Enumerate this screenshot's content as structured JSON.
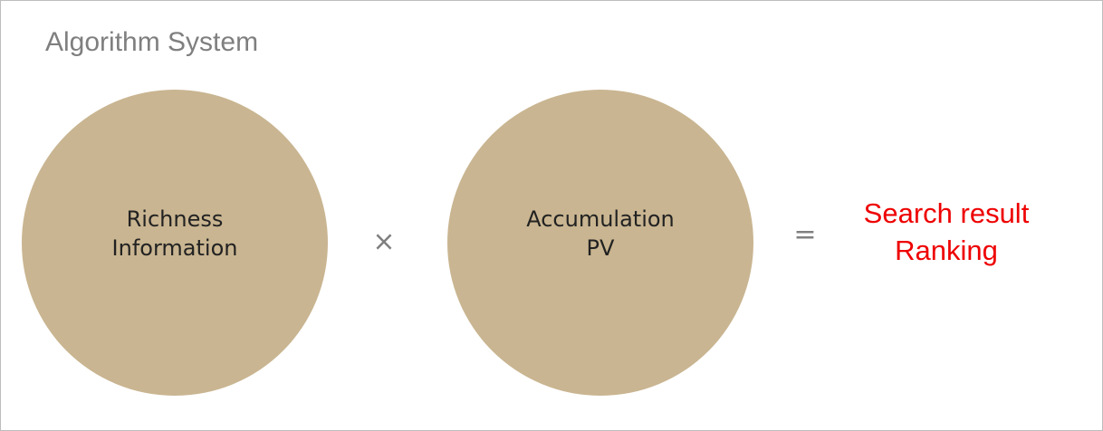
{
  "title": "Algorithm System",
  "nodes": [
    {
      "label": [
        "Richness",
        "Information"
      ]
    },
    {
      "label": [
        "Accumulation",
        "PV"
      ]
    }
  ],
  "operators": [
    "×",
    "="
  ],
  "result": [
    "Search result",
    "Ranking"
  ]
}
